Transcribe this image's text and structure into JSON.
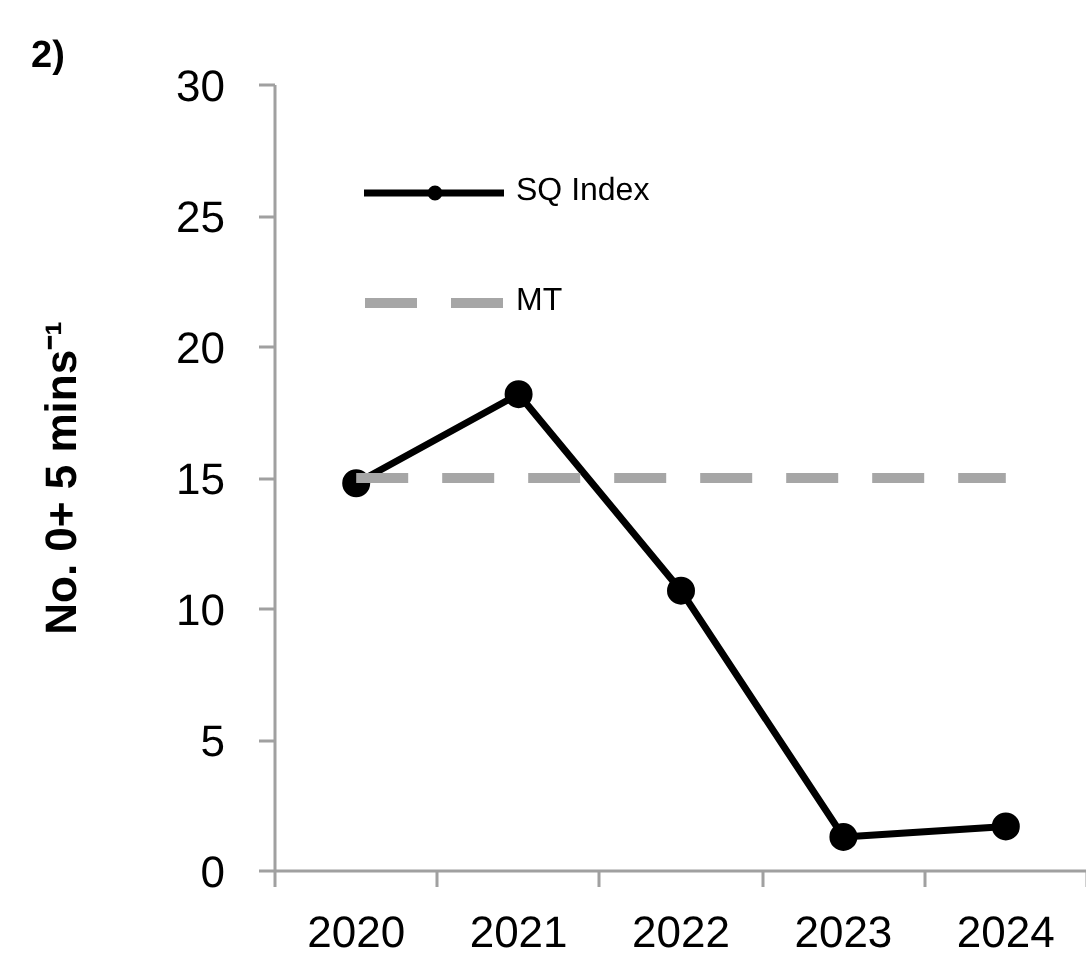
{
  "chart_data": {
    "type": "line",
    "title": "2)",
    "ylabel": "No. 0+ 5 mins⁻¹",
    "categories": [
      "2020",
      "2021",
      "2022",
      "2023",
      "2024"
    ],
    "series": [
      {
        "name": "SQ Index",
        "color": "#000000",
        "values": [
          14.8,
          18.2,
          10.7,
          1.3,
          1.7
        ],
        "marker": "circle",
        "line_style": "solid"
      },
      {
        "name": "MT",
        "color": "#a6a6a6",
        "values": [
          15,
          15,
          15,
          15,
          15
        ],
        "marker": "none",
        "line_style": "dashed"
      }
    ],
    "ylim": [
      0,
      30
    ],
    "yticks": [
      0,
      5,
      10,
      15,
      20,
      25,
      30
    ],
    "grid": false,
    "legend": "top left"
  }
}
